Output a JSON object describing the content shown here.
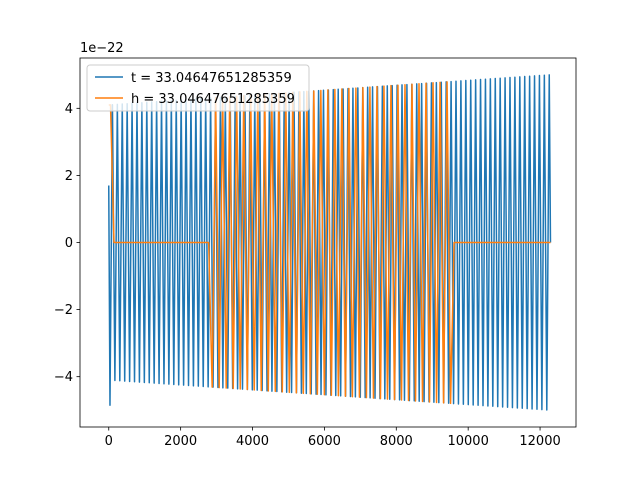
{
  "chart_data": {
    "type": "line",
    "title": "",
    "xlabel": "",
    "ylabel": "",
    "y_offset_label": "1e−22",
    "xlim": [
      -800,
      13000
    ],
    "ylim": [
      -5.5,
      5.5
    ],
    "xticks": [
      0,
      2000,
      4000,
      6000,
      8000,
      10000,
      12000
    ],
    "xtick_labels": [
      "0",
      "2000",
      "4000",
      "6000",
      "8000",
      "10000",
      "12000"
    ],
    "yticks": [
      -4,
      -2,
      0,
      2,
      4
    ],
    "ytick_labels": [
      "−4",
      "−2",
      "0",
      "2",
      "4"
    ],
    "grid": false,
    "legend_position": "upper-left",
    "series": [
      {
        "name": "t = 33.04647651285359",
        "color": "#1f77b4",
        "x_range": [
          0,
          12290
        ],
        "cycles": 90,
        "start_value": 1.7,
        "first_min": -4.85,
        "amplitude_start": 4.1,
        "amplitude_end": 5.0
      },
      {
        "name": "h = 33.04647651285359",
        "color": "#ff7f0e",
        "x_range": [
          0,
          12290
        ],
        "cycles": 63,
        "start_value": 4.1,
        "amplitude_start": 4.1,
        "amplitude_end": 5.0,
        "gaps": [
          [
            90,
            2840
          ],
          [
            9530,
            12290
          ]
        ]
      }
    ]
  }
}
